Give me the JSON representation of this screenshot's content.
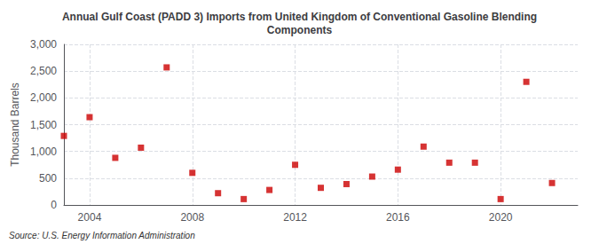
{
  "chart_data": {
    "type": "scatter",
    "title": "Annual Gulf Coast (PADD 3) Imports from United Kingdom of Conventional Gasoline Blending\nComponents",
    "ylabel": "Thousand Barrels",
    "source": "Source: U.S. Energy Information Administration",
    "x": [
      2003,
      2004,
      2005,
      2006,
      2007,
      2008,
      2009,
      2010,
      2011,
      2012,
      2013,
      2014,
      2015,
      2016,
      2017,
      2018,
      2019,
      2020,
      2021,
      2022
    ],
    "values": [
      1290,
      1640,
      880,
      1070,
      2570,
      600,
      220,
      110,
      280,
      750,
      320,
      390,
      530,
      660,
      1090,
      790,
      790,
      110,
      2300,
      410
    ],
    "color": "#cc0000",
    "marker": "square",
    "xlim": [
      2003.0,
      2023.0
    ],
    "ylim": [
      0,
      3000
    ],
    "xticks": [
      2004,
      2008,
      2012,
      2016,
      2020
    ],
    "yticks": [
      0,
      500,
      {
        "value": 1000,
        "label": "1,000"
      },
      {
        "value": 1500,
        "label": "1,500"
      },
      {
        "value": 2000,
        "label": "2,000"
      },
      {
        "value": 2500,
        "label": "2,500"
      },
      {
        "value": 3000,
        "label": "3,000"
      }
    ],
    "grid": true
  }
}
